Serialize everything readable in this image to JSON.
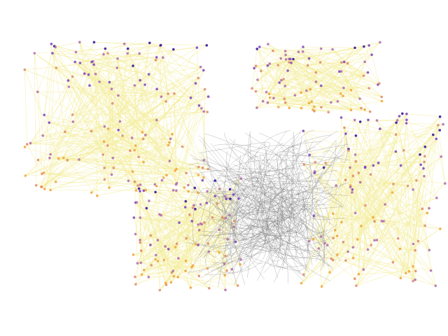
{
  "palette": {
    "nodes": [
      "#2b0a9c",
      "#7b3fc4",
      "#b06ab0",
      "#e0886a",
      "#f2a33a"
    ],
    "edges": "#f4ee9c",
    "curves": "#7d7d7d"
  }
}
